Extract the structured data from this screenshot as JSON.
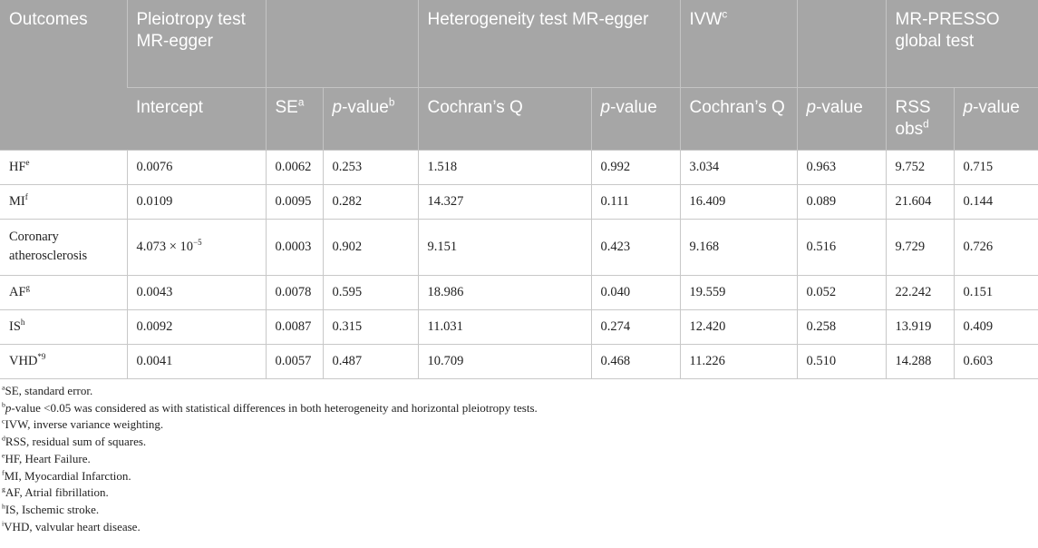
{
  "header": {
    "groups": [
      {
        "text": "Outcomes"
      },
      {
        "text": "Pleiotropy test MR-egger"
      },
      {
        "text": "Heterogeneity test MR-egger"
      },
      {
        "text": "IVW",
        "sup": "c"
      },
      {
        "text": "MR-PRESSO global test"
      }
    ],
    "columns": [
      {
        "text": "Intercept"
      },
      {
        "text": "SE",
        "sup": "a"
      },
      {
        "italic": "p",
        "text": "-value",
        "sup": "b"
      },
      {
        "text": "Cochran’s Q"
      },
      {
        "italic": "p",
        "text": "-value"
      },
      {
        "text": "Cochran’s Q"
      },
      {
        "italic": "p",
        "text": "-value"
      },
      {
        "text": "RSS obs",
        "sup": "d"
      },
      {
        "italic": "p",
        "text": "-value"
      }
    ]
  },
  "rows": [
    {
      "outcome": {
        "text": "HF",
        "sup": "e"
      },
      "cells": [
        "0.0076",
        "0.0062",
        "0.253",
        "1.518",
        "0.992",
        "3.034",
        "0.963",
        "9.752",
        "0.715"
      ]
    },
    {
      "outcome": {
        "text": "MI",
        "sup": "f"
      },
      "cells": [
        "0.0109",
        "0.0095",
        "0.282",
        "14.327",
        "0.111",
        "16.409",
        "0.089",
        "21.604",
        "0.144"
      ]
    },
    {
      "outcome": {
        "text": "Coronary atherosclerosis"
      },
      "cells": [
        {
          "text": "4.073 × 10",
          "sup": "−5"
        },
        "0.0003",
        "0.902",
        "9.151",
        "0.423",
        "9.168",
        "0.516",
        "9.729",
        "0.726"
      ]
    },
    {
      "outcome": {
        "text": "AF",
        "sup": "g"
      },
      "cells": [
        "0.0043",
        "0.0078",
        "0.595",
        "18.986",
        "0.040",
        "19.559",
        "0.052",
        "22.242",
        "0.151"
      ]
    },
    {
      "outcome": {
        "text": "IS",
        "sup": "h"
      },
      "cells": [
        "0.0092",
        "0.0087",
        "0.315",
        "11.031",
        "0.274",
        "12.420",
        "0.258",
        "13.919",
        "0.409"
      ]
    },
    {
      "outcome": {
        "text": "VHD",
        "sup": "*9"
      },
      "cells": [
        "0.0041",
        "0.0057",
        "0.487",
        "10.709",
        "0.468",
        "11.226",
        "0.510",
        "14.288",
        "0.603"
      ]
    }
  ],
  "footnotes": [
    {
      "sup": "a",
      "text": "SE, standard error."
    },
    {
      "sup": "b",
      "italic": "p",
      "text": "-value <0.05 was considered as with statistical differences in both heterogeneity and horizontal pleiotropy tests."
    },
    {
      "sup": "c",
      "text": "IVW, inverse variance weighting."
    },
    {
      "sup": "d",
      "text": "RSS, residual sum of squares."
    },
    {
      "sup": "e",
      "text": "HF, Heart Failure."
    },
    {
      "sup": "f",
      "text": "MI, Myocardial Infarction."
    },
    {
      "sup": "g",
      "text": "AF, Atrial fibrillation."
    },
    {
      "sup": "h",
      "text": "IS, Ischemic stroke."
    },
    {
      "sup": "i",
      "text": "VHD, valvular heart disease."
    }
  ]
}
